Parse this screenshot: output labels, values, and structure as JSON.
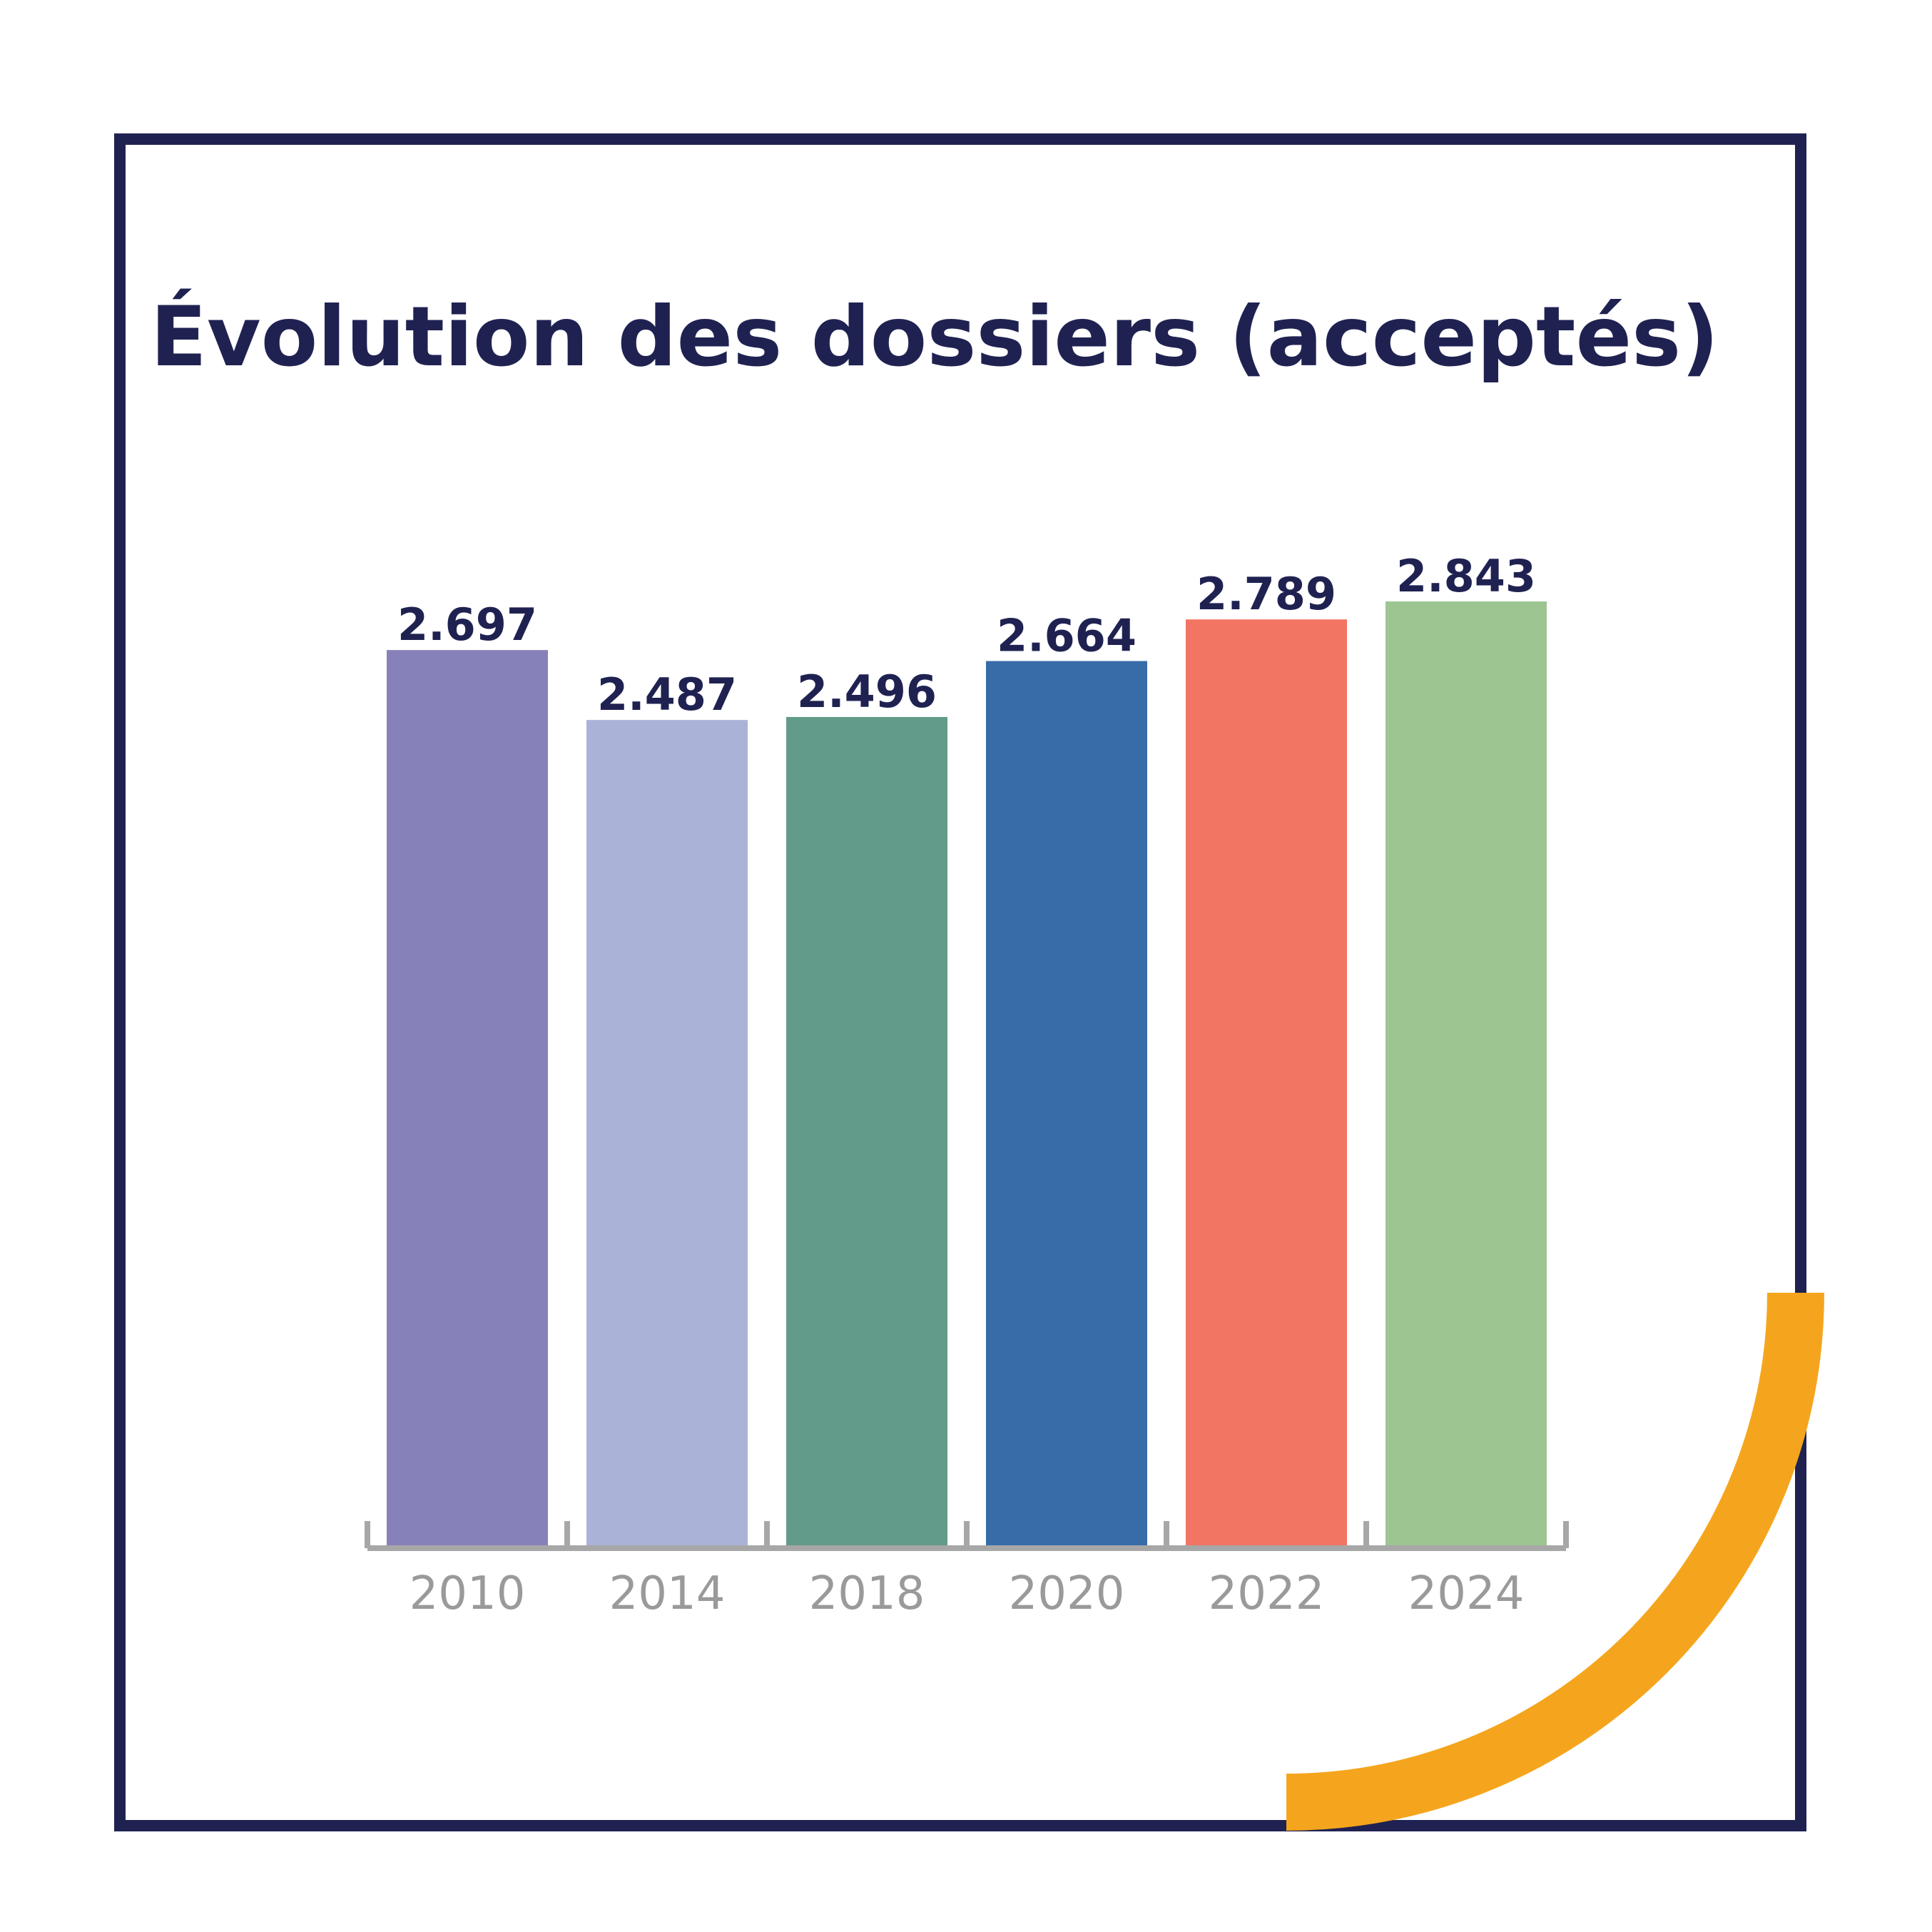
{
  "chart_data": {
    "type": "bar",
    "title": "Évolution des dossiers (acceptés)",
    "xlabel": "",
    "ylabel": "",
    "categories": [
      "2010",
      "2014",
      "2018",
      "2020",
      "2022",
      "2024"
    ],
    "values": [
      2697,
      2487,
      2496,
      2664,
      2789,
      2843
    ],
    "value_labels": [
      "2.697",
      "2.487",
      "2.496",
      "2.664",
      "2.789",
      "2.843"
    ],
    "bar_colors": [
      "#8781b9",
      "#aab3d7",
      "#629b8a",
      "#376ca9",
      "#f27563",
      "#9cc592"
    ],
    "grid": false,
    "legend": "none",
    "ylim": [
      0,
      2843
    ]
  },
  "colors": {
    "frame": "#1f2251",
    "title": "#1f2251",
    "value_label": "#1f2251",
    "axis": "#a7a7a7",
    "tick_label": "#9a9a9a",
    "accent_arc": "#f5a51d"
  }
}
